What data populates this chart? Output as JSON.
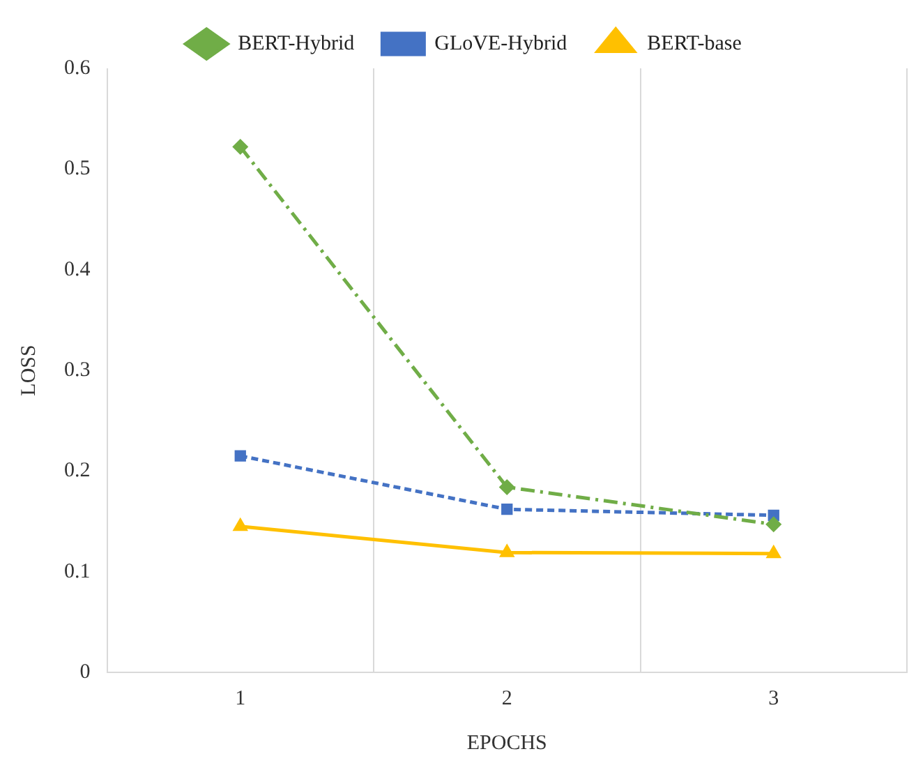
{
  "chart_data": {
    "type": "line",
    "xlabel": "EPOCHS",
    "ylabel": "LOSS",
    "categories": [
      "1",
      "2",
      "3"
    ],
    "series": [
      {
        "name": "BERT-Hybrid",
        "color": "#70ad47",
        "values": [
          0.522,
          0.184,
          0.147
        ],
        "marker": "diamond",
        "line_style": "dashed"
      },
      {
        "name": "GLoVE-Hybrid",
        "color": "#4472c4",
        "values": [
          0.215,
          0.162,
          0.156
        ],
        "marker": "square",
        "line_style": "dotted"
      },
      {
        "name": "BERT-base",
        "color": "#ffc000",
        "values": [
          0.145,
          0.119,
          0.118
        ],
        "marker": "triangle",
        "line_style": "solid"
      }
    ],
    "ylim": [
      0,
      0.6
    ],
    "yticks": [
      0,
      0.1,
      0.2,
      0.3,
      0.4,
      0.5,
      0.6
    ],
    "grid": "x",
    "legend": "top"
  }
}
